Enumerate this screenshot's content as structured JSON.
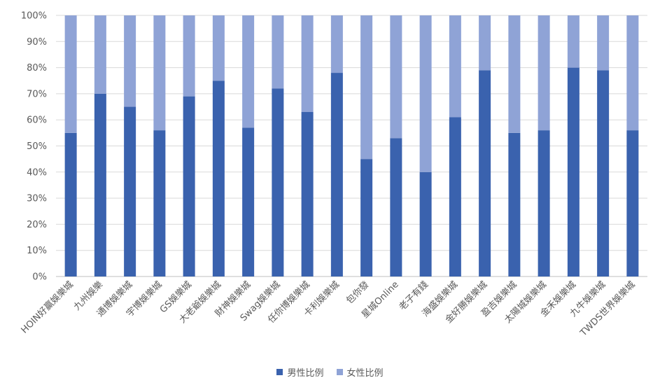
{
  "chart_data": {
    "type": "bar",
    "stacked": true,
    "categories": [
      "HOIN好贏娛樂城",
      "九州娛樂",
      "通博娛樂城",
      "宇博娛樂城",
      "GS娛樂城",
      "大老爺娛樂城",
      "財神娛樂城",
      "Swag娛樂城",
      "任你博娛樂城",
      "卡利娛樂城",
      "包你發",
      "星城Online",
      "老子有錢",
      "海盛娛樂城",
      "金好勝娛樂城",
      "盈吉娛樂城",
      "太陽城娛樂城",
      "金禾娛樂城",
      "九牛娛樂城",
      "TWDS世界娛樂城"
    ],
    "series": [
      {
        "name": "男性比例",
        "color": "#3a62ae",
        "values": [
          55,
          70,
          65,
          56,
          69,
          75,
          57,
          72,
          63,
          78,
          45,
          53,
          40,
          61,
          79,
          55,
          56,
          80,
          79,
          56
        ]
      },
      {
        "name": "女性比例",
        "color": "#8fa3d6",
        "values": [
          45,
          30,
          35,
          44,
          31,
          25,
          43,
          28,
          37,
          22,
          55,
          47,
          60,
          39,
          21,
          45,
          44,
          20,
          21,
          44
        ]
      }
    ],
    "ylim": [
      0,
      100
    ],
    "yticks": [
      "0%",
      "10%",
      "20%",
      "30%",
      "40%",
      "50%",
      "60%",
      "70%",
      "80%",
      "90%",
      "100%"
    ],
    "grid": true,
    "legend_position": "bottom"
  }
}
